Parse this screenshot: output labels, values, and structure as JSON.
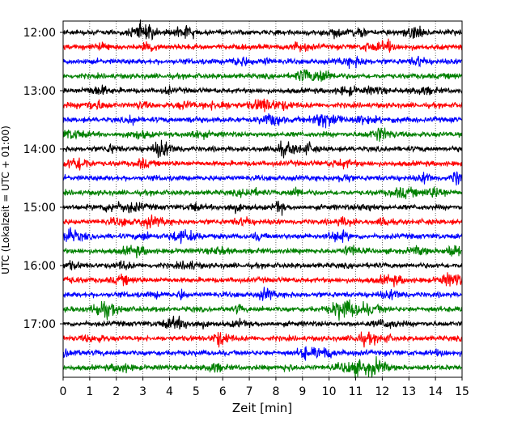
{
  "chart_data": {
    "type": "line",
    "title": "",
    "xlabel": "Zeit  [min]",
    "ylabel": "UTC (Lokalzeit = UTC + 01:00)",
    "xlim": [
      0,
      15
    ],
    "x_ticks": [
      "0",
      "1",
      "2",
      "3",
      "4",
      "5",
      "6",
      "7",
      "8",
      "9",
      "10",
      "11",
      "12",
      "13",
      "14",
      "15"
    ],
    "y_ticks": [
      "12:00",
      "13:00",
      "14:00",
      "15:00",
      "16:00",
      "17:00"
    ],
    "rows_per_hour": 4,
    "row_minutes": 15,
    "start_time": "12:00",
    "trace_count": 24,
    "grid": "vertical dotted at each minute",
    "series_colors": [
      "#000000",
      "#ff0000",
      "#0000ff",
      "#008000"
    ]
  }
}
